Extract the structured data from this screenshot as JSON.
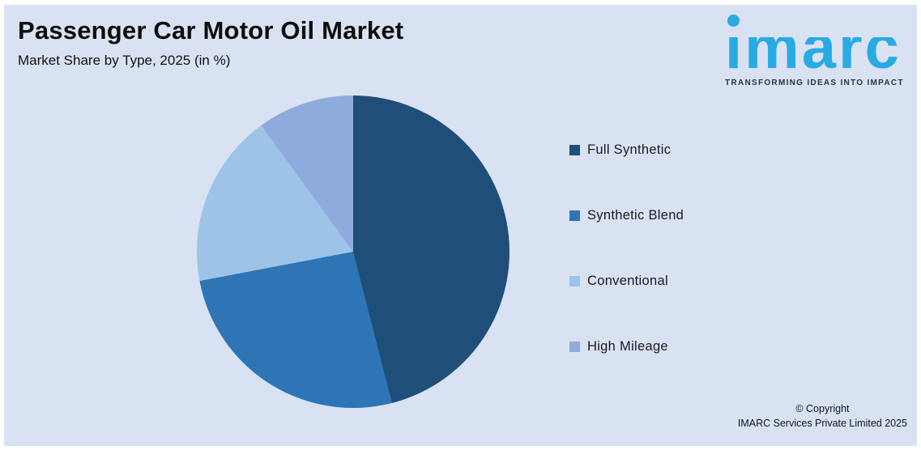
{
  "header": {
    "title": "Passenger Car Motor Oil Market",
    "subtitle": "Market Share by Type, 2025 (in %)"
  },
  "chart_data": {
    "type": "pie",
    "title": "Passenger Car Motor Oil Market",
    "subtitle": "Market Share by Type, 2025 (in %)",
    "categories": [
      "Full Synthetic",
      "Synthetic Blend",
      "Conventional",
      "High Mileage"
    ],
    "values": [
      46,
      26,
      18,
      10
    ],
    "unit": "%",
    "colors": [
      "#1F4E79",
      "#2E75B6",
      "#9DC3E6",
      "#8FAADC"
    ],
    "start_angle_deg": 0,
    "direction": "clockwise",
    "legend_position": "right",
    "data_labels": "none"
  },
  "logo": {
    "wordmark": "imarc",
    "tagline": "TRANSFORMING IDEAS INTO IMPACT",
    "brand_color": "#29ABE2",
    "tagline_color": "#2C3144"
  },
  "footer": {
    "copyright_line1": "© Copyright",
    "copyright_line2": "IMARC Services Private Limited 2025"
  },
  "canvas": {
    "background": "#D9E2F2",
    "border_color": "#FFFFFF"
  }
}
